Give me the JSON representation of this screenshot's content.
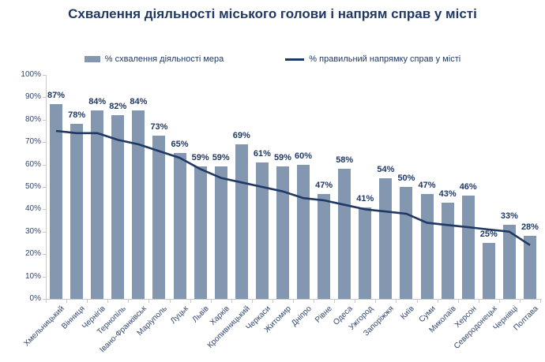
{
  "title": "Схвалення діяльності міського голови і напрям справ у місті",
  "legend": {
    "bar_label": "% схвалення діяльності мера",
    "line_label": "% правильний напрямку справ у місті"
  },
  "colors": {
    "bar": "#8497b0",
    "line": "#1f3864",
    "title_text": "#1f3864",
    "axis": "#c8c8c8"
  },
  "chart_data": {
    "type": "bar",
    "title": "Схвалення діяльності міського голови і напрям справ у місті",
    "categories": [
      "Хмельницький",
      "Вінниця",
      "Чернігів",
      "Тернопіль",
      "Івано-Франківськ",
      "Маріуполь",
      "Луцьк",
      "Львів",
      "Харків",
      "Кропивницький",
      "Черкаси",
      "Житомир",
      "Дніпро",
      "Рівне",
      "Одеса",
      "Ужгород",
      "Запоріжжя",
      "Київ",
      "Суми",
      "Миколаїв",
      "Херсон",
      "Северодонецьк",
      "Чернівці",
      "Полтава"
    ],
    "series": [
      {
        "name": "% схвалення діяльності мера",
        "type": "bar",
        "values": [
          87,
          78,
          84,
          82,
          84,
          73,
          65,
          59,
          59,
          69,
          61,
          59,
          60,
          47,
          58,
          41,
          54,
          50,
          47,
          43,
          46,
          25,
          33,
          28
        ],
        "value_labels": [
          "87%",
          "78%",
          "84%",
          "82%",
          "84%",
          "73%",
          "65%",
          "59%",
          "59%",
          "69%",
          "61%",
          "59%",
          "60%",
          "47%",
          "58%",
          "41%",
          "54%",
          "50%",
          "47%",
          "43%",
          "46%",
          "25%",
          "33%",
          "28%"
        ]
      },
      {
        "name": "% правильний напрямку справ у місті",
        "type": "line",
        "values": [
          75,
          74,
          74,
          71,
          69,
          66,
          63,
          58,
          54,
          52,
          50,
          48,
          45,
          44,
          42,
          40,
          39,
          38,
          34,
          33,
          32,
          31,
          30,
          24
        ]
      }
    ],
    "xlabel": "",
    "ylabel": "",
    "ylim": [
      0,
      100
    ],
    "y_ticks": [
      "0%",
      "10%",
      "20%",
      "30%",
      "40%",
      "50%",
      "60%",
      "70%",
      "80%",
      "90%",
      "100%"
    ],
    "grid": false,
    "legend_position": "top"
  }
}
